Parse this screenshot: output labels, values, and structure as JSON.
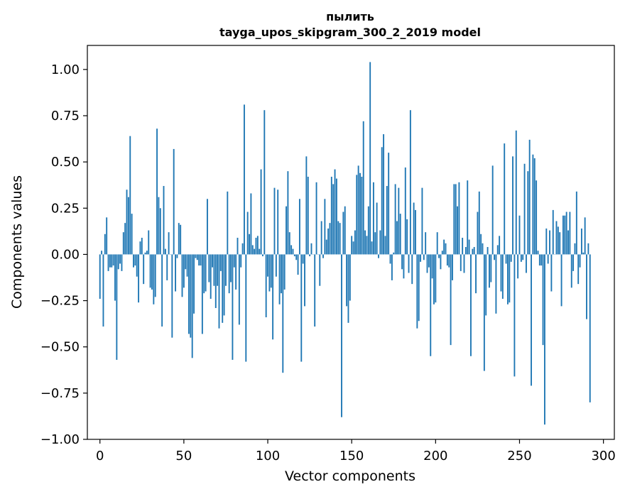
{
  "chart_data": {
    "type": "bar",
    "title": "пылить",
    "subtitle": "tayga_upos_skipgram_300_2_2019 model",
    "xlabel": "Vector components",
    "ylabel": "Components values",
    "xlim": [
      -7.5,
      306.5
    ],
    "ylim": [
      -1.0,
      1.13
    ],
    "xticks": [
      0,
      50,
      100,
      150,
      200,
      250,
      300
    ],
    "xtick_labels": [
      "0",
      "50",
      "100",
      "150",
      "200",
      "250",
      "300"
    ],
    "yticks": [
      -1.0,
      -0.75,
      -0.5,
      -0.25,
      0.0,
      0.25,
      0.5,
      0.75,
      1.0
    ],
    "ytick_labels": [
      "−1.00",
      "−0.75",
      "−0.50",
      "−0.25",
      "0.00",
      "0.25",
      "0.50",
      "0.75",
      "1.00"
    ],
    "grid": false,
    "bar_color": "#1f77b4",
    "values": [
      -0.24,
      0.02,
      -0.39,
      0.11,
      0.2,
      -0.09,
      -0.07,
      -0.07,
      -0.06,
      -0.25,
      -0.57,
      -0.08,
      -0.05,
      -0.09,
      0.12,
      0.17,
      0.35,
      0.31,
      0.64,
      0.22,
      -0.07,
      -0.06,
      -0.12,
      -0.26,
      0.07,
      0.09,
      -0.16,
      0.01,
      0.02,
      0.13,
      -0.18,
      -0.19,
      -0.27,
      -0.23,
      0.68,
      0.31,
      0.25,
      -0.39,
      0.37,
      0.03,
      -0.14,
      0.12,
      0.0,
      -0.45,
      0.57,
      -0.2,
      -0.02,
      0.17,
      0.16,
      -0.23,
      -0.18,
      -0.08,
      -0.12,
      -0.43,
      -0.45,
      -0.56,
      -0.32,
      -0.02,
      -0.03,
      -0.06,
      -0.06,
      -0.43,
      -0.21,
      -0.2,
      0.3,
      -0.15,
      -0.24,
      -0.07,
      -0.17,
      -0.29,
      -0.17,
      -0.4,
      -0.09,
      -0.37,
      -0.33,
      -0.17,
      0.34,
      -0.21,
      -0.15,
      -0.57,
      -0.07,
      -0.19,
      0.09,
      -0.38,
      -0.07,
      0.06,
      0.81,
      -0.58,
      0.23,
      0.11,
      0.33,
      0.05,
      0.03,
      0.09,
      0.1,
      0.03,
      0.46,
      -0.01,
      0.78,
      -0.34,
      -0.12,
      -0.2,
      -0.18,
      -0.46,
      0.36,
      -0.12,
      0.35,
      -0.27,
      -0.21,
      -0.64,
      -0.19,
      0.26,
      0.45,
      0.12,
      0.05,
      0.03,
      -0.01,
      -0.03,
      -0.11,
      0.3,
      -0.58,
      -0.05,
      -0.28,
      0.53,
      0.42,
      -0.01,
      0.06,
      0.0,
      -0.39,
      0.39,
      0.0,
      -0.17,
      0.18,
      -0.02,
      0.3,
      0.08,
      0.14,
      0.17,
      0.42,
      0.38,
      0.46,
      0.41,
      0.18,
      0.17,
      -0.88,
      0.23,
      0.26,
      -0.28,
      -0.37,
      -0.25,
      0.1,
      0.07,
      0.13,
      0.43,
      0.48,
      0.44,
      0.42,
      0.72,
      0.13,
      0.1,
      0.26,
      1.04,
      0.07,
      0.39,
      0.12,
      0.28,
      -0.02,
      0.13,
      0.58,
      0.65,
      0.1,
      0.37,
      0.55,
      -0.05,
      -0.14,
      0.01,
      0.38,
      0.18,
      0.36,
      0.22,
      -0.08,
      -0.13,
      0.47,
      0.19,
      -0.1,
      0.78,
      -0.16,
      0.28,
      0.24,
      -0.4,
      -0.36,
      -0.04,
      0.36,
      -0.03,
      0.12,
      -0.1,
      -0.07,
      -0.55,
      -0.13,
      -0.27,
      -0.26,
      0.12,
      -0.02,
      -0.08,
      0.02,
      0.08,
      0.06,
      -0.06,
      -0.07,
      -0.49,
      -0.14,
      0.38,
      0.38,
      0.26,
      0.39,
      -0.09,
      0.09,
      -0.1,
      0.04,
      0.4,
      0.08,
      -0.55,
      0.03,
      0.04,
      -0.21,
      0.23,
      0.34,
      0.11,
      0.06,
      -0.63,
      -0.33,
      0.04,
      -0.18,
      -0.15,
      0.48,
      -0.03,
      -0.32,
      0.05,
      0.1,
      -0.2,
      -0.24,
      0.6,
      -0.05,
      -0.27,
      -0.26,
      -0.04,
      0.53,
      -0.66,
      0.67,
      -0.13,
      0.21,
      -0.04,
      -0.03,
      0.49,
      -0.1,
      0.45,
      0.62,
      -0.71,
      0.54,
      0.52,
      0.4,
      0.02,
      -0.06,
      -0.06,
      -0.49,
      -0.92,
      0.14,
      -0.05,
      0.13,
      -0.2,
      0.24,
      0.0,
      0.18,
      0.15,
      0.12,
      -0.28,
      0.21,
      0.21,
      0.23,
      0.13,
      0.23,
      -0.18,
      -0.09,
      0.06,
      0.34,
      -0.16,
      -0.07,
      0.14,
      0.01,
      0.2,
      -0.35,
      0.06,
      -0.8
    ]
  }
}
